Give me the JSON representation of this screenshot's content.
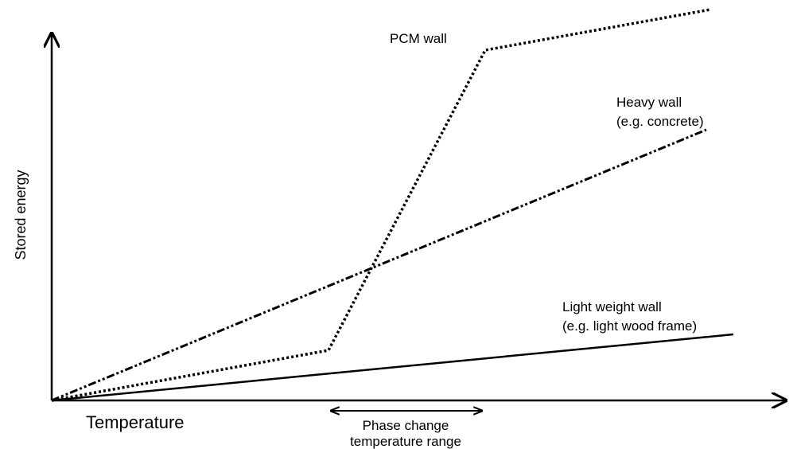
{
  "axes": {
    "y_label": "Stored energy",
    "x_label": "Temperature"
  },
  "lines": [
    {
      "label": "PCM wall"
    },
    {
      "label": "Heavy wall",
      "note": "(e.g. concrete)"
    },
    {
      "label": "Light weight wall",
      "note": "(e.g. light wood frame)"
    }
  ],
  "range": {
    "line1": "Phase change",
    "line2": "temperature range"
  }
}
